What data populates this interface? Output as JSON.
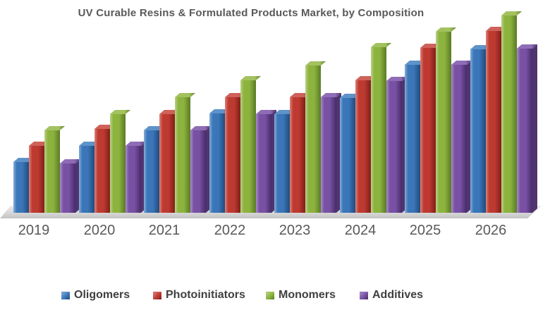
{
  "chart_data": {
    "type": "bar",
    "variant": "3d-clustered-column",
    "title": "UV Curable Resins & Formulated Products Market, by Composition",
    "categories": [
      "2019",
      "2020",
      "2021",
      "2022",
      "2023",
      "2024",
      "2025",
      "2026"
    ],
    "series": [
      {
        "name": "Oligomers",
        "values": [
          72,
          95,
          117,
          141,
          140,
          163,
          210,
          232
        ],
        "fill": {
          "base": "#3A76B8",
          "light": "#85AED9",
          "dark": "#1F4C7E",
          "top": "#5D93C9",
          "side": "#274F80"
        }
      },
      {
        "name": "Photoinitiators",
        "values": [
          95,
          119,
          140,
          164,
          164,
          188,
          234,
          258
        ],
        "fill": {
          "base": "#BE3A31",
          "light": "#DC847B",
          "dark": "#801F19",
          "top": "#CE625A",
          "side": "#87261F"
        }
      },
      {
        "name": "Monomers",
        "values": [
          117,
          140,
          164,
          188,
          209,
          235,
          257,
          280
        ],
        "fill": {
          "base": "#8CB33E",
          "light": "#BCD289",
          "dark": "#5A7A25",
          "top": "#A3C25F",
          "side": "#62802B"
        }
      },
      {
        "name": "Additives",
        "values": [
          70,
          95,
          117,
          140,
          164,
          187,
          210,
          233
        ],
        "fill": {
          "base": "#7851A4",
          "light": "#AA8DC7",
          "dark": "#472C68",
          "top": "#8F6DB6",
          "side": "#50346F"
        }
      }
    ],
    "units": "relative height (no value axis shown)",
    "value_axis_visible": false,
    "gridlines": false,
    "legend": {
      "position": "bottom",
      "entries": [
        "Oligomers",
        "Photoinitiators",
        "Monomers",
        "Additives"
      ]
    },
    "text_colors": {
      "title": "#595959",
      "axis_labels": "#595959",
      "legend": "#404040"
    }
  }
}
